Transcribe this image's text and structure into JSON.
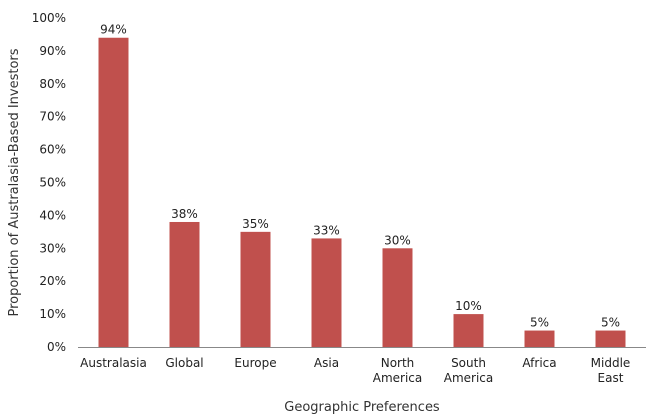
{
  "chart_data": {
    "type": "bar",
    "categories": [
      "Australasia",
      "Global",
      "Europe",
      "Asia",
      "North America",
      "South America",
      "Africa",
      "Middle East"
    ],
    "category_lines": [
      [
        "Australasia"
      ],
      [
        "Global"
      ],
      [
        "Europe"
      ],
      [
        "Asia"
      ],
      [
        "North",
        "America"
      ],
      [
        "South",
        "America"
      ],
      [
        "Africa"
      ],
      [
        "Middle",
        "East"
      ]
    ],
    "values": [
      94,
      38,
      35,
      33,
      30,
      10,
      5,
      5
    ],
    "data_labels": [
      "94%",
      "38%",
      "35%",
      "33%",
      "30%",
      "10%",
      "5%",
      "5%"
    ],
    "xlabel": "Geographic Preferences",
    "ylabel": "Proportion of Australasia-Based Investors",
    "ylim": [
      0,
      100
    ],
    "yticks": [
      0,
      10,
      20,
      30,
      40,
      50,
      60,
      70,
      80,
      90,
      100
    ],
    "ytick_labels": [
      "0%",
      "10%",
      "20%",
      "30%",
      "40%",
      "50%",
      "60%",
      "70%",
      "80%",
      "90%",
      "100%"
    ],
    "bar_color": "#c0504d",
    "grid": false,
    "legend": "none"
  }
}
